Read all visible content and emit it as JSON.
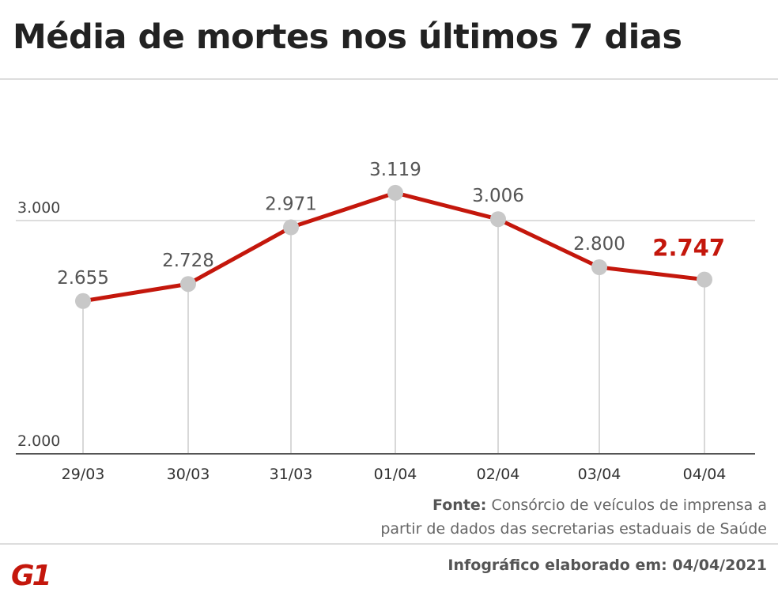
{
  "chart_data": {
    "type": "line",
    "title": "Média de mortes nos últimos 7 dias",
    "categories": [
      "29/03",
      "30/03",
      "31/03",
      "01/04",
      "02/04",
      "03/04",
      "04/04"
    ],
    "values": [
      2655,
      2728,
      2971,
      3119,
      3006,
      2800,
      2747
    ],
    "data_labels": [
      "2.655",
      "2.728",
      "2.971",
      "3.119",
      "3.006",
      "2.800",
      "2.747"
    ],
    "yticks": [
      {
        "value": 2000,
        "label": "2.000"
      },
      {
        "value": 3000,
        "label": "3.000"
      }
    ],
    "ylim": [
      2000,
      3000
    ],
    "grid": "horizontal at 3.000",
    "line_color": "#c4170c",
    "marker_color": "#c8c8c8",
    "highlight_last_label_color": "#c4170c"
  },
  "source": {
    "label": "Fonte:",
    "line1": "Consórcio de veículos de imprensa a",
    "line2": "partir de dados das secretarias estaduais de Saúde"
  },
  "logo": "G1",
  "credit": "Infográfico elaborado em: 04/04/2021"
}
